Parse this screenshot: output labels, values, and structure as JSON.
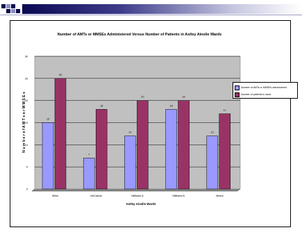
{
  "colors": {
    "header_dark": "#0a0a52",
    "header_accent": "#8d8dc6",
    "plot_background": "#c0c0c0",
    "series_1": "#9999ff",
    "series_2": "#993366"
  },
  "chart_data": {
    "type": "bar",
    "title": "Number of AMTs or MMSEs Administered Versus Number of Patients in Astley Ainslie Wards",
    "xlabel": "Astley Ainslie Wards",
    "ylabel": "N u m b e r o f A M T s o r M M S E s",
    "categories": [
      "Miles",
      "McCallum",
      "Millbank A",
      "Millbank B",
      "Mears"
    ],
    "series": [
      {
        "name": "Number of AMTs or MMSEs administered",
        "values": [
          15,
          7,
          12,
          18,
          12
        ],
        "color": "#9999ff"
      },
      {
        "name": "Number of patients in ward",
        "values": [
          25,
          18,
          20,
          20,
          17
        ],
        "color": "#993366"
      }
    ],
    "yticks": [
      "0",
      "5",
      "10",
      "15",
      "20",
      "25",
      "30"
    ],
    "ylim": [
      0,
      30
    ],
    "grid": true,
    "legend_position": "right",
    "data_labels": true
  }
}
